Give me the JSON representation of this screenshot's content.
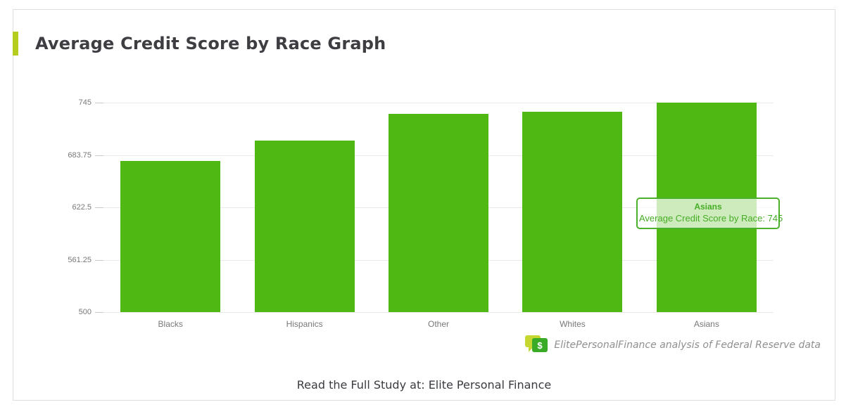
{
  "header": {
    "title": "Average Credit Score by Race Graph"
  },
  "tooltip": {
    "title": "Asians",
    "line": "Average Credit Score by Race: 745"
  },
  "attribution": {
    "text": "ElitePersonalFinance analysis of Federal Reserve data",
    "logo_dollar": "$"
  },
  "footer": {
    "text": "Read the Full Study at: Elite Personal Finance"
  },
  "colors": {
    "bar_green": "#4fb813",
    "accent_chartreuse": "#b5cd1f",
    "tooltip_green": "#45ad25",
    "tooltip_border_green": "#4bb02b",
    "logo_back_bubble": "#c5d730",
    "logo_front_bubble": "#3aab27",
    "gridline_gray": "#e9e9e9",
    "axis_text_gray": "#787878",
    "title_text": "#3e3d42"
  },
  "chart_data": {
    "type": "bar",
    "title": "Average Credit Score by Race Graph",
    "series_name": "Average Credit Score by Race",
    "categories": [
      "Blacks",
      "Hispanics",
      "Other",
      "Whites",
      "Asians"
    ],
    "values": [
      677,
      701,
      732,
      734,
      745
    ],
    "xlabel": "",
    "ylabel": "",
    "ylim": [
      500,
      745
    ],
    "yticks": [
      745,
      683.75,
      622.5,
      561.25,
      500
    ],
    "grid": "horizontal-only",
    "legend": "none",
    "bar_color": "#4fb813",
    "highlighted_category": "Asians",
    "tooltip": {
      "title": "Asians",
      "text": "Average Credit Score by Race: 745"
    }
  }
}
